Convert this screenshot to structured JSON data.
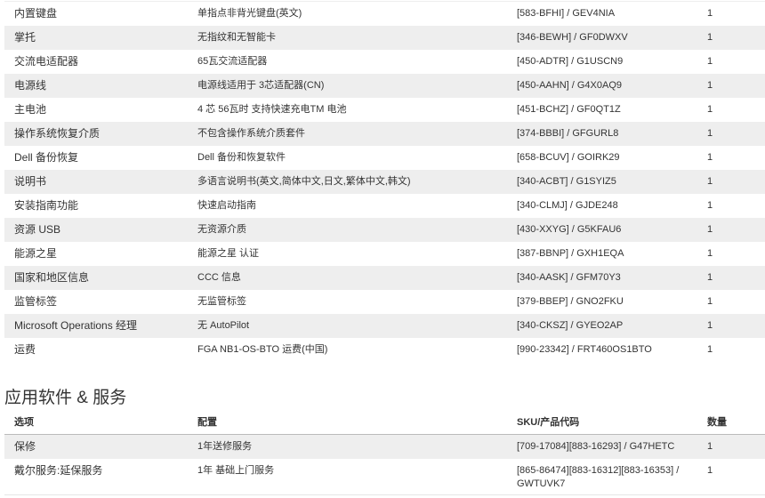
{
  "table1": {
    "rows": [
      {
        "option": "内置键盘",
        "config": "单指点非背光键盘(英文)",
        "sku": "[583-BFHI] / GEV4NIA",
        "qty": "1"
      },
      {
        "option": "掌托",
        "config": "无指纹和无智能卡",
        "sku": "[346-BEWH] / GF0DWXV",
        "qty": "1"
      },
      {
        "option": "交流电适配器",
        "config": "65瓦交流适配器",
        "sku": "[450-ADTR] / G1USCN9",
        "qty": "1"
      },
      {
        "option": "电源线",
        "config": "电源线适用于 3芯适配器(CN)",
        "sku": "[450-AAHN] / G4X0AQ9",
        "qty": "1"
      },
      {
        "option": "主电池",
        "config": "4 芯 56瓦时 支持快速充电TM 电池",
        "sku": "[451-BCHZ] / GF0QT1Z",
        "qty": "1"
      },
      {
        "option": "操作系统恢复介质",
        "config": "不包含操作系统介质套件",
        "sku": "[374-BBBI] / GFGURL8",
        "qty": "1"
      },
      {
        "option": "Dell 备份恢复",
        "config": "Dell 备份和恢复软件",
        "sku": "[658-BCUV] / GOIRK29",
        "qty": "1"
      },
      {
        "option": "说明书",
        "config": "多语言说明书(英文,简体中文,日文,繁体中文,韩文)",
        "sku": "[340-ACBT] / G1SYIZ5",
        "qty": "1"
      },
      {
        "option": "安装指南功能",
        "config": "快速启动指南",
        "sku": "[340-CLMJ] / GJDE248",
        "qty": "1"
      },
      {
        "option": "资源 USB",
        "config": "无资源介质",
        "sku": "[430-XXYG] / G5KFAU6",
        "qty": "1"
      },
      {
        "option": "能源之星",
        "config": "能源之星 认证",
        "sku": "[387-BBNP] / GXH1EQA",
        "qty": "1"
      },
      {
        "option": "国家和地区信息",
        "config": "CCC 信息",
        "sku": "[340-AASK] / GFM70Y3",
        "qty": "1"
      },
      {
        "option": "监管标签",
        "config": "无监管标签",
        "sku": "[379-BBEP] / GNO2FKU",
        "qty": "1"
      },
      {
        "option": "Microsoft Operations 经理",
        "config": "无 AutoPilot",
        "sku": "[340-CKSZ] / GYEO2AP",
        "qty": "1"
      },
      {
        "option": "运费",
        "config": "FGA NB1-OS-BTO 运费(中国)",
        "sku": "[990-23342] / FRT460OS1BTO",
        "qty": "1"
      }
    ]
  },
  "section2": {
    "title": "应用软件 & 服务",
    "headers": {
      "option": "选项",
      "config": "配置",
      "sku": "SKU/产品代码",
      "qty": "数量"
    },
    "rows": [
      {
        "option": "保修",
        "config": "1年送修服务",
        "sku": "[709-17084][883-16293] / G47HETC",
        "qty": "1"
      },
      {
        "option": "戴尔服务:延保服务",
        "config": "1年 基础上门服务",
        "sku": "[865-86474][883-16312][883-16353] / GWTUVK7",
        "qty": "1"
      }
    ]
  }
}
